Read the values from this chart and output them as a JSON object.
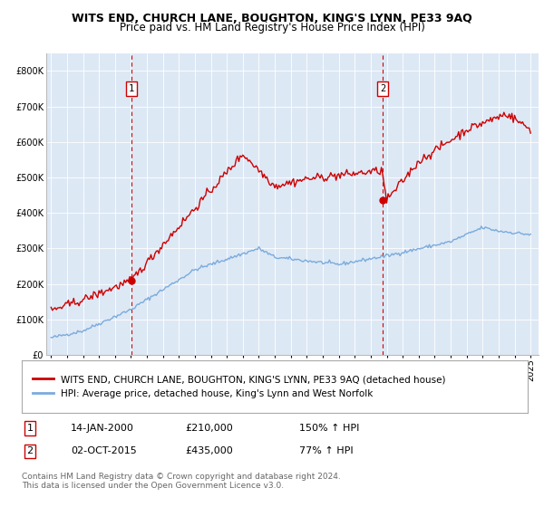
{
  "title": "WITS END, CHURCH LANE, BOUGHTON, KING'S LYNN, PE33 9AQ",
  "subtitle": "Price paid vs. HM Land Registry's House Price Index (HPI)",
  "legend_line1": "WITS END, CHURCH LANE, BOUGHTON, KING'S LYNN, PE33 9AQ (detached house)",
  "legend_line2": "HPI: Average price, detached house, King's Lynn and West Norfolk",
  "footer_line1": "Contains HM Land Registry data © Crown copyright and database right 2024.",
  "footer_line2": "This data is licensed under the Open Government Licence v3.0.",
  "sale1_label": "1",
  "sale1_date": "14-JAN-2000",
  "sale1_price": "£210,000",
  "sale1_hpi": "150% ↑ HPI",
  "sale1_x": 2000.04,
  "sale1_y": 210000,
  "sale2_label": "2",
  "sale2_date": "02-OCT-2015",
  "sale2_price": "£435,000",
  "sale2_hpi": "77% ↑ HPI",
  "sale2_x": 2015.75,
  "sale2_y": 435000,
  "property_color": "#cc0000",
  "hpi_color": "#7aabdc",
  "vline_color": "#cc0000",
  "background_color": "#dde8f5",
  "grid_color": "#ffffff",
  "box_edge_color": "#cc0000",
  "ylim_min": 0,
  "ylim_max": 850000,
  "xlim_min": 1994.7,
  "xlim_max": 2025.5,
  "x_ticks": [
    1995,
    1996,
    1997,
    1998,
    1999,
    2000,
    2001,
    2002,
    2003,
    2004,
    2005,
    2006,
    2007,
    2008,
    2009,
    2010,
    2011,
    2012,
    2013,
    2014,
    2015,
    2016,
    2017,
    2018,
    2019,
    2020,
    2021,
    2022,
    2023,
    2024,
    2025
  ],
  "y_ticks": [
    0,
    100000,
    200000,
    300000,
    400000,
    500000,
    600000,
    700000,
    800000
  ],
  "title_fontsize": 9,
  "subtitle_fontsize": 8.5,
  "tick_fontsize": 7,
  "legend_fontsize": 7.5,
  "annotation_fontsize": 8,
  "footer_fontsize": 6.5
}
